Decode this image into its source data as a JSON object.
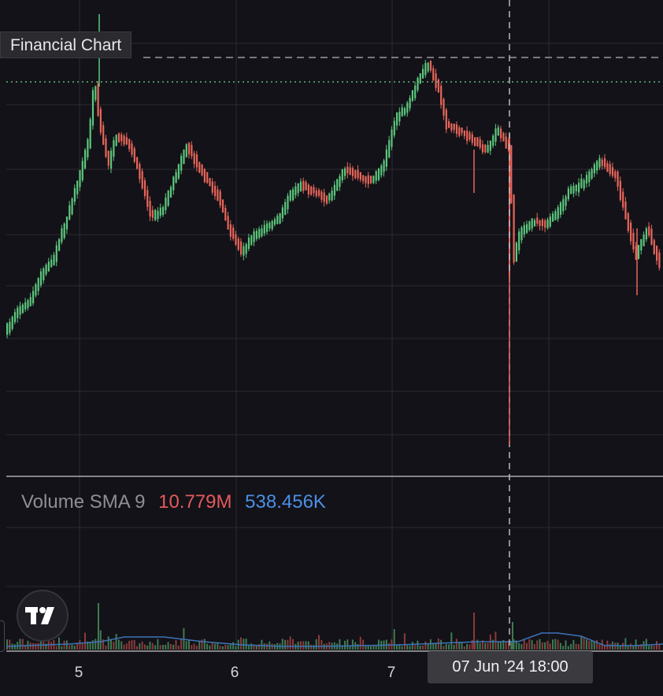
{
  "title": "Financial Chart",
  "chart_data": {
    "type": "candlestick",
    "x_ticks": [
      "5",
      "6",
      "7"
    ],
    "crosshair_label": "07 Jun '24   18:00",
    "volume_legend": {
      "name": "Volume SMA 9",
      "value": "10.779M",
      "sma": "538.456K"
    },
    "price_path": [
      [
        0.0,
        430
      ],
      [
        0.2,
        395
      ],
      [
        0.35,
        385
      ],
      [
        0.5,
        350
      ],
      [
        0.65,
        330
      ],
      [
        0.85,
        270
      ],
      [
        1.0,
        220
      ],
      [
        1.1,
        180
      ],
      [
        1.18,
        100
      ],
      [
        1.24,
        155
      ],
      [
        1.35,
        210
      ],
      [
        1.45,
        175
      ],
      [
        1.6,
        180
      ],
      [
        1.75,
        220
      ],
      [
        1.9,
        275
      ],
      [
        2.05,
        265
      ],
      [
        2.18,
        230
      ],
      [
        2.35,
        185
      ],
      [
        2.55,
        220
      ],
      [
        2.75,
        250
      ],
      [
        2.9,
        295
      ],
      [
        3.05,
        320
      ],
      [
        3.2,
        300
      ],
      [
        3.35,
        290
      ],
      [
        3.5,
        280
      ],
      [
        3.65,
        250
      ],
      [
        3.8,
        235
      ],
      [
        4.0,
        245
      ],
      [
        4.15,
        255
      ],
      [
        4.35,
        215
      ],
      [
        4.55,
        225
      ],
      [
        4.7,
        230
      ],
      [
        4.85,
        210
      ],
      [
        5.0,
        150
      ],
      [
        5.12,
        140
      ],
      [
        5.3,
        100
      ],
      [
        5.42,
        80
      ],
      [
        5.55,
        115
      ],
      [
        5.65,
        160
      ],
      [
        5.8,
        165
      ],
      [
        5.95,
        175
      ],
      [
        6.15,
        190
      ],
      [
        6.3,
        165
      ],
      [
        6.45,
        190
      ],
      [
        6.5,
        330
      ],
      [
        6.58,
        295
      ],
      [
        6.75,
        280
      ],
      [
        6.9,
        285
      ],
      [
        7.05,
        270
      ],
      [
        7.2,
        245
      ],
      [
        7.4,
        230
      ],
      [
        7.6,
        205
      ],
      [
        7.8,
        225
      ],
      [
        7.9,
        265
      ],
      [
        8.05,
        325
      ],
      [
        8.2,
        290
      ],
      [
        8.35,
        335
      ],
      [
        8.5,
        355
      ]
    ],
    "volume_path": [
      [
        0.0,
        821
      ],
      [
        0.8,
        818
      ],
      [
        1.2,
        815
      ],
      [
        1.5,
        809
      ],
      [
        2.0,
        809
      ],
      [
        2.5,
        815
      ],
      [
        3.0,
        819
      ],
      [
        3.5,
        821
      ],
      [
        4.0,
        821
      ],
      [
        4.5,
        820
      ],
      [
        5.0,
        819
      ],
      [
        5.5,
        817
      ],
      [
        6.0,
        815
      ],
      [
        6.5,
        815
      ],
      [
        6.8,
        804
      ],
      [
        7.0,
        804
      ],
      [
        7.3,
        808
      ],
      [
        7.6,
        820
      ],
      [
        8.0,
        820
      ],
      [
        8.5,
        817
      ]
    ]
  }
}
